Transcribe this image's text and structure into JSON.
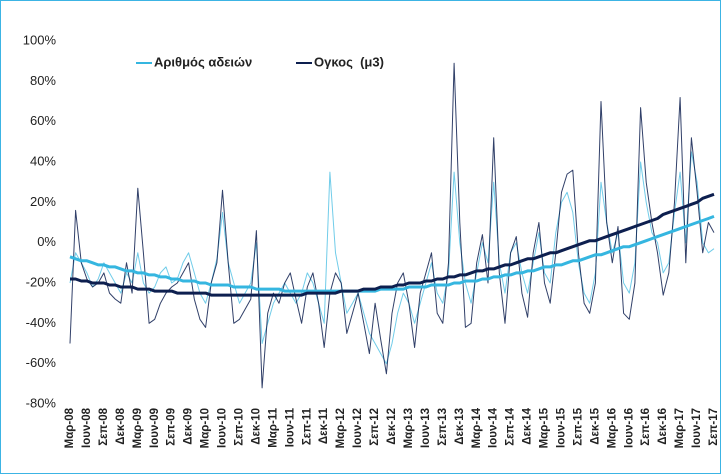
{
  "chart_data": {
    "type": "line",
    "categories": [
      "Μαρ-08",
      null,
      null,
      "Ιουν-08",
      null,
      null,
      "Σεπ-08",
      null,
      null,
      "Δεκ-08",
      null,
      null,
      "Μαρ-09",
      null,
      null,
      "Ιουν-09",
      null,
      null,
      "Σεπ-09",
      null,
      null,
      "Δεκ-09",
      null,
      null,
      "Μαρ-10",
      null,
      null,
      "Ιουν-10",
      null,
      null,
      "Σεπ-10",
      null,
      null,
      "Δεκ-10",
      null,
      null,
      "Μαρ-11",
      null,
      null,
      "Ιουν-11",
      null,
      null,
      "Σεπ-11",
      null,
      null,
      "Δεκ-11",
      null,
      null,
      "Μαρ-12",
      null,
      null,
      "Ιουν-12",
      null,
      null,
      "Σεπ-12",
      null,
      null,
      "Δεκ-12",
      null,
      null,
      "Μαρ-13",
      null,
      null,
      "Ιουν-13",
      null,
      null,
      "Σεπ-13",
      null,
      null,
      "Δεκ-13",
      null,
      null,
      "Μαρ-14",
      null,
      null,
      "Ιουν-14",
      null,
      null,
      "Σεπ-14",
      null,
      null,
      "Δεκ-14",
      null,
      null,
      "Μαρ-15",
      null,
      null,
      "Ιουν-15",
      null,
      null,
      "Σεπ-15",
      null,
      null,
      "Δεκ-15",
      null,
      null,
      "Μαρ-16",
      null,
      null,
      "Ιουν-16",
      null,
      null,
      "Σεπ-16",
      null,
      null,
      "Δεκ-16",
      null,
      null,
      "Μαρ-17",
      null,
      null,
      "Ιουν-17",
      null,
      null,
      "Σεπ-17"
    ],
    "series": [
      {
        "name": "Αριθμός αδειών",
        "color": "#35b6e0",
        "values": [
          -20,
          -5,
          -10,
          -15,
          -22,
          -18,
          -10,
          -15,
          -20,
          -25,
          -15,
          -20,
          -5,
          -20,
          -25,
          -22,
          -15,
          -12,
          -20,
          -18,
          -10,
          -5,
          -15,
          -25,
          -30,
          -20,
          -8,
          15,
          -10,
          -20,
          -30,
          -25,
          -20,
          0,
          -50,
          -40,
          -30,
          -25,
          -20,
          -25,
          -30,
          -25,
          -15,
          -20,
          -30,
          -40,
          35,
          -5,
          -20,
          -35,
          -30,
          -25,
          -35,
          -45,
          -50,
          -55,
          -60,
          -50,
          -35,
          -25,
          -30,
          -40,
          -30,
          -20,
          -10,
          -25,
          -30,
          -15,
          35,
          0,
          -20,
          -30,
          -15,
          0,
          -10,
          30,
          -10,
          -25,
          -5,
          0,
          -15,
          -25,
          -10,
          5,
          -15,
          -20,
          5,
          20,
          25,
          15,
          -10,
          -25,
          -30,
          -15,
          30,
          10,
          -5,
          5,
          -20,
          -25,
          -10,
          40,
          20,
          5,
          0,
          -15,
          -10,
          15,
          35,
          0,
          45,
          30,
          0,
          -5,
          -3
        ],
        "trend": [
          -7,
          -8,
          -9,
          -9,
          -10,
          -11,
          -11,
          -12,
          -12,
          -13,
          -14,
          -14,
          -15,
          -15,
          -16,
          -16,
          -17,
          -17,
          -18,
          -18,
          -19,
          -19,
          -19,
          -20,
          -20,
          -21,
          -21,
          -21,
          -21,
          -22,
          -22,
          -22,
          -22,
          -23,
          -23,
          -23,
          -23,
          -23,
          -24,
          -24,
          -24,
          -24,
          -24,
          -24,
          -24,
          -24,
          -24,
          -24,
          -24,
          -24,
          -24,
          -24,
          -24,
          -24,
          -24,
          -23,
          -23,
          -23,
          -23,
          -23,
          -22,
          -22,
          -22,
          -22,
          -21,
          -21,
          -21,
          -21,
          -20,
          -20,
          -19,
          -19,
          -19,
          -18,
          -18,
          -17,
          -17,
          -16,
          -16,
          -15,
          -15,
          -14,
          -14,
          -13,
          -12,
          -12,
          -11,
          -11,
          -10,
          -9,
          -9,
          -8,
          -7,
          -6,
          -6,
          -5,
          -4,
          -3,
          -2,
          -2,
          -1,
          0,
          1,
          2,
          3,
          4,
          5,
          6,
          7,
          8,
          9,
          10,
          11,
          12,
          13
        ]
      },
      {
        "name": "Ογκος  (μ3)",
        "color": "#0d1f4f",
        "values": [
          -50,
          16,
          -10,
          -18,
          -22,
          -20,
          -15,
          -25,
          -28,
          -30,
          -10,
          -25,
          27,
          -5,
          -40,
          -38,
          -30,
          -25,
          -22,
          -20,
          -15,
          -10,
          -28,
          -38,
          -42,
          -20,
          -10,
          26,
          -10,
          -40,
          -38,
          -33,
          -28,
          6,
          -72,
          -35,
          -25,
          -30,
          -20,
          -15,
          -28,
          -40,
          -22,
          -15,
          -30,
          -52,
          -25,
          -15,
          -20,
          -45,
          -35,
          -25,
          -40,
          -55,
          -30,
          -48,
          -65,
          -35,
          -20,
          -15,
          -30,
          -52,
          -25,
          -15,
          -5,
          -35,
          -40,
          -10,
          89,
          10,
          -42,
          -40,
          -10,
          4,
          -20,
          52,
          -15,
          -40,
          -5,
          3,
          -25,
          -37,
          -5,
          10,
          -20,
          -30,
          -5,
          25,
          34,
          36,
          -5,
          -30,
          -35,
          -20,
          70,
          10,
          -10,
          8,
          -35,
          -38,
          -20,
          67,
          30,
          10,
          -5,
          -26,
          -15,
          20,
          72,
          -10,
          52,
          25,
          -5,
          10,
          5
        ],
        "trend": [
          -18,
          -18,
          -19,
          -19,
          -20,
          -20,
          -20,
          -21,
          -21,
          -22,
          -22,
          -22,
          -23,
          -23,
          -23,
          -24,
          -24,
          -24,
          -24,
          -25,
          -25,
          -25,
          -25,
          -25,
          -25,
          -26,
          -26,
          -26,
          -26,
          -26,
          -26,
          -26,
          -26,
          -26,
          -26,
          -26,
          -26,
          -26,
          -26,
          -26,
          -26,
          -26,
          -25,
          -25,
          -25,
          -25,
          -25,
          -25,
          -24,
          -24,
          -24,
          -24,
          -23,
          -23,
          -23,
          -22,
          -22,
          -22,
          -21,
          -21,
          -20,
          -20,
          -20,
          -19,
          -19,
          -18,
          -18,
          -17,
          -17,
          -16,
          -16,
          -15,
          -14,
          -14,
          -13,
          -13,
          -12,
          -11,
          -11,
          -10,
          -9,
          -8,
          -8,
          -7,
          -6,
          -5,
          -5,
          -4,
          -3,
          -2,
          -1,
          0,
          1,
          1,
          2,
          3,
          4,
          5,
          6,
          7,
          8,
          9,
          10,
          11,
          12,
          14,
          15,
          16,
          17,
          18,
          19,
          20,
          22,
          23,
          24
        ]
      }
    ],
    "ylim": [
      -80,
      100
    ],
    "yticks": [
      {
        "value": -80,
        "label": "-80%"
      },
      {
        "value": -60,
        "label": "-60%"
      },
      {
        "value": -40,
        "label": "-40%"
      },
      {
        "value": -20,
        "label": "-20%"
      },
      {
        "value": 0,
        "label": "0%"
      },
      {
        "value": 20,
        "label": "20%"
      },
      {
        "value": 40,
        "label": "40%"
      },
      {
        "value": 60,
        "label": "60%"
      },
      {
        "value": 80,
        "label": "80%"
      },
      {
        "value": 100,
        "label": "100%"
      }
    ],
    "grid": false
  }
}
